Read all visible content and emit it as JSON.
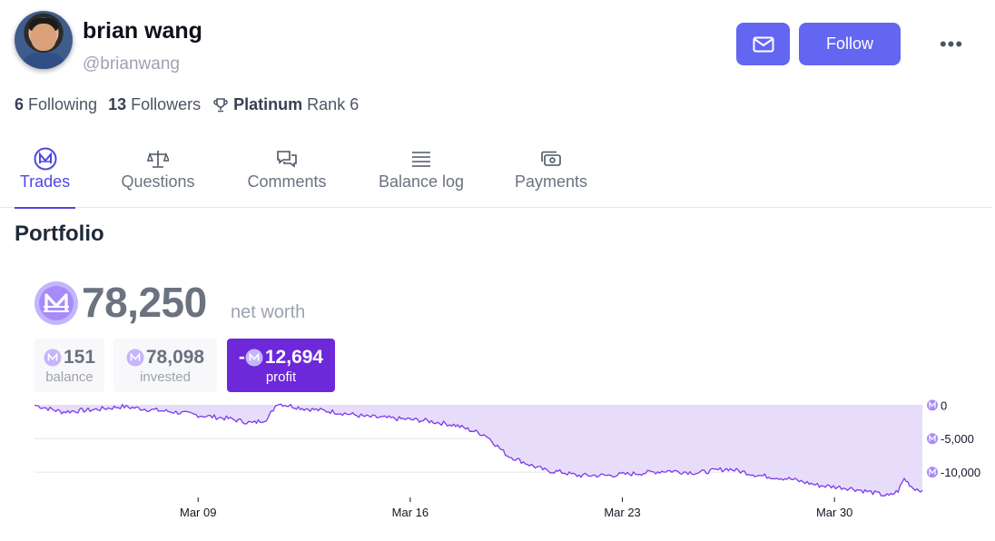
{
  "profile": {
    "name": "brian wang",
    "handle": "@brianwang",
    "following_count": "6",
    "following_label": "Following",
    "followers_count": "13",
    "followers_label": "Followers",
    "rank_tier": "Platinum",
    "rank_label": "Rank 6"
  },
  "actions": {
    "message_icon": "mail-icon",
    "follow_label": "Follow",
    "more_label": "•••"
  },
  "tabs": [
    {
      "label": "Trades",
      "icon": "mana-icon",
      "active": true
    },
    {
      "label": "Questions",
      "icon": "scale-icon",
      "active": false
    },
    {
      "label": "Comments",
      "icon": "chat-icon",
      "active": false
    },
    {
      "label": "Balance log",
      "icon": "list-icon",
      "active": false
    },
    {
      "label": "Payments",
      "icon": "cash-icon",
      "active": false
    }
  ],
  "portfolio": {
    "title": "Portfolio",
    "net_worth": "78,250",
    "net_worth_label": "net worth",
    "balance_value": "151",
    "balance_label": "balance",
    "invested_value": "78,098",
    "invested_label": "invested",
    "profit_sign": "-",
    "profit_value": "12,694",
    "profit_label": "profit"
  },
  "colors": {
    "accent": "#6366f1",
    "profit_active": "#6d28d9",
    "chart_line": "#7c3aed",
    "chart_fill": "#e4d9fb"
  },
  "chart_data": {
    "type": "area",
    "xlabel": "",
    "ylabel": "",
    "x_ticks": [
      "Mar 09",
      "Mar 16",
      "Mar 23",
      "Mar 30"
    ],
    "x_tick_days": [
      9,
      16,
      23,
      30
    ],
    "x_range_days": [
      3.6,
      32.9
    ],
    "y_ticks": [
      "0",
      "-5,000",
      "-10,000"
    ],
    "y_tick_values": [
      0,
      -5000,
      -10000
    ],
    "ylim": [
      -14600,
      1000
    ],
    "grid": true,
    "series": [
      {
        "x_days": [
          3.6,
          4.5,
          5.5,
          6.5,
          7.5,
          8.2,
          9.0,
          10.0,
          10.8,
          11.3,
          11.6,
          12.5,
          13.5,
          14.5,
          15.5,
          16.5,
          17.5,
          18.5,
          19.2,
          20.0,
          20.5,
          21.0,
          21.5,
          22.5,
          23.5,
          24.5,
          25.5,
          26.5,
          27.5,
          28.5,
          29.5,
          30.5,
          31.2,
          31.8,
          32.1,
          32.3,
          32.6,
          32.9
        ],
        "values": [
          0,
          -1000,
          -700,
          -200,
          -700,
          -1000,
          -1500,
          -2000,
          -2700,
          -2000,
          300,
          -500,
          -1000,
          -1700,
          -2000,
          -2300,
          -3000,
          -4500,
          -7500,
          -9000,
          -9800,
          -10000,
          -10500,
          -10500,
          -10200,
          -9800,
          -10100,
          -9500,
          -10500,
          -11000,
          -12000,
          -12400,
          -13000,
          -13600,
          -12800,
          -11000,
          -12400,
          -12700
        ]
      }
    ]
  }
}
